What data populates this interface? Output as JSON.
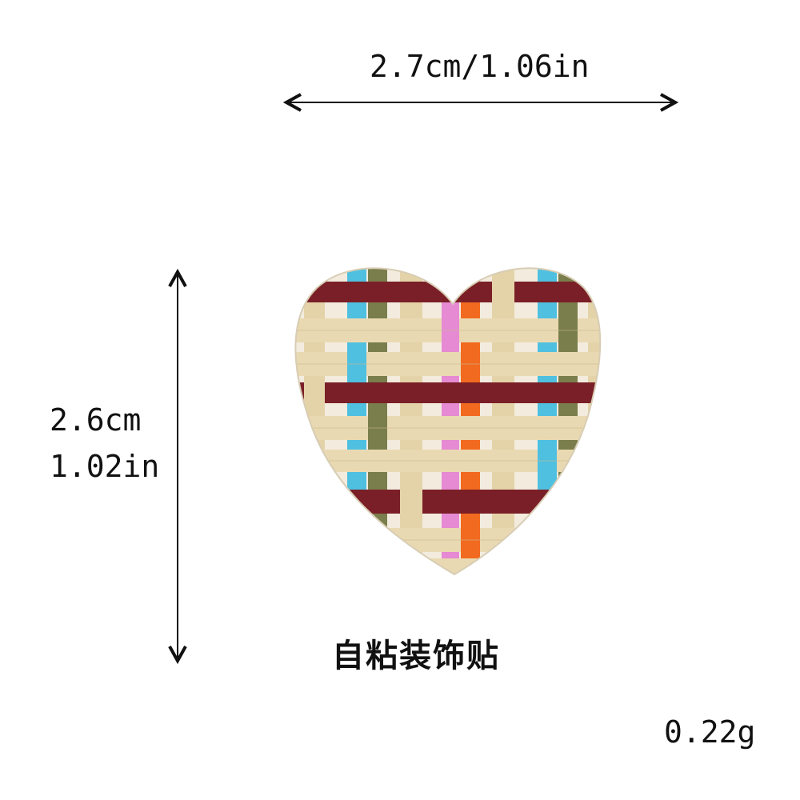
{
  "dimensions": {
    "width_label": "2.7cm/1.06in",
    "height_cm": "2.6cm",
    "height_in": "1.02in"
  },
  "caption": "自粘装饰贴",
  "weight": "0.22g",
  "colors": {
    "raffia_cream": "#e9d9b2",
    "burgundy": "#7a1f27",
    "sky_blue": "#4fc0e0",
    "olive": "#7a7d4c",
    "pink": "#e58ad3",
    "orange": "#f26a1f"
  }
}
